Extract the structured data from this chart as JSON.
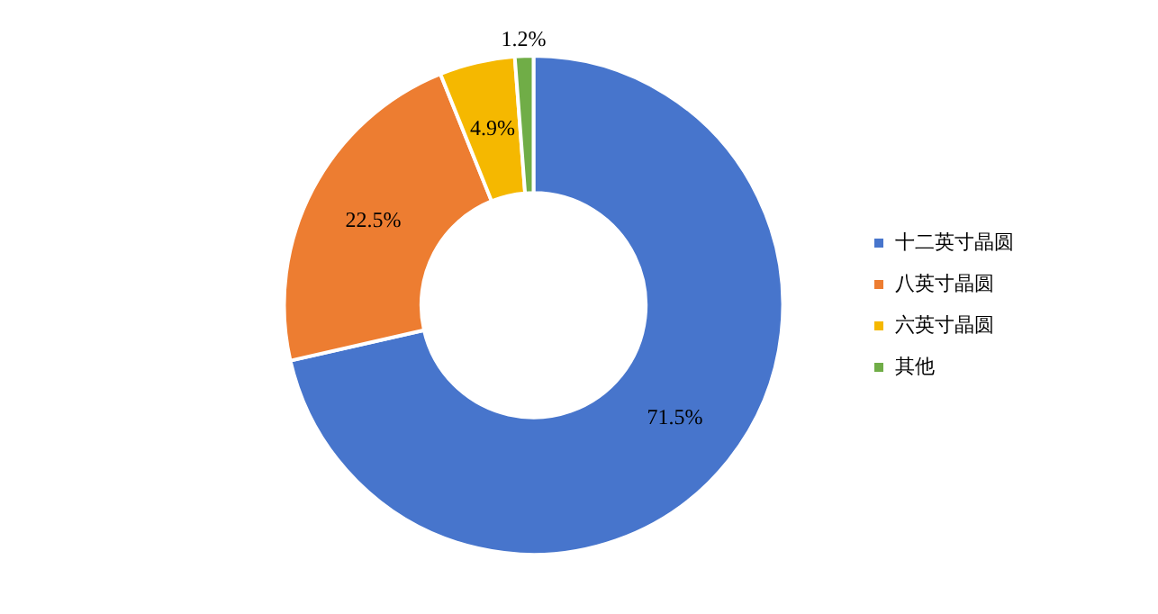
{
  "chart_data": {
    "type": "donut",
    "categories": [
      "十二英寸晶圆",
      "八英寸晶圆",
      "六英寸晶圆",
      "其他"
    ],
    "values": [
      71.5,
      22.5,
      4.9,
      1.2
    ],
    "colors": [
      "#4775cc",
      "#ed7d31",
      "#f5b800",
      "#70ad47"
    ],
    "value_labels": [
      "71.5%",
      "22.5%",
      "4.9%",
      "1.2%"
    ],
    "legend": "right"
  }
}
